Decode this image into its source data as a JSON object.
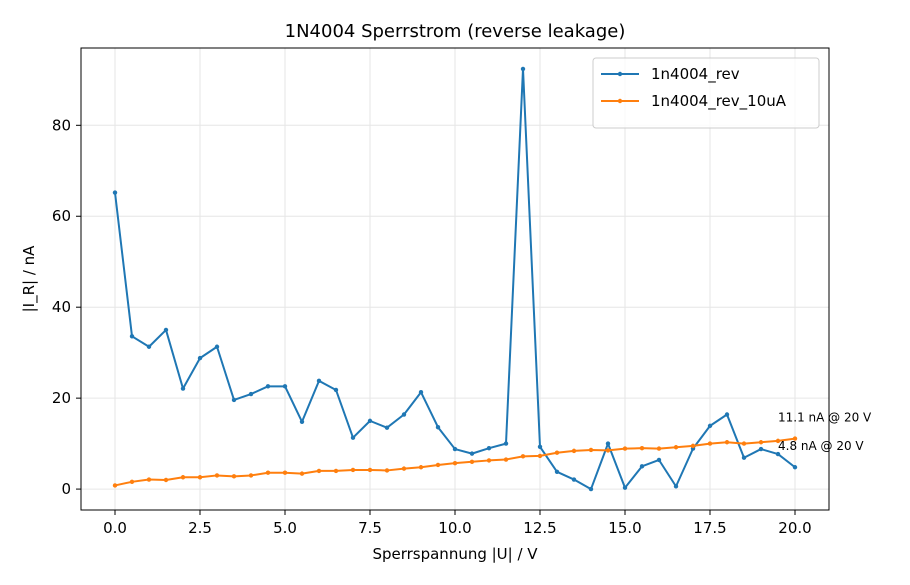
{
  "chart_data": {
    "type": "line",
    "title": "1N4004 Sperrstrom (reverse leakage)",
    "xlabel": "Sperrspannung |U| / V",
    "ylabel": "|I_R| / nA",
    "xlim": [
      -1.0,
      21.0
    ],
    "ylim": [
      -4.6,
      97.0
    ],
    "xticks": [
      0,
      2.5,
      5,
      7.5,
      10,
      12.5,
      15,
      17.5,
      20
    ],
    "xtick_labels": [
      "0.0",
      "2.5",
      "5.0",
      "7.5",
      "10.0",
      "12.5",
      "15.0",
      "17.5",
      "20.0"
    ],
    "yticks": [
      0,
      20,
      40,
      60,
      80
    ],
    "ytick_labels": [
      "0",
      "20",
      "40",
      "60",
      "80"
    ],
    "grid": true,
    "legend_position": "top-right",
    "x": [
      0,
      0.5,
      1,
      1.5,
      2,
      2.5,
      3,
      3.5,
      4,
      4.5,
      5,
      5.5,
      6,
      6.5,
      7,
      7.5,
      8,
      8.5,
      9,
      9.5,
      10,
      10.5,
      11,
      11.5,
      12,
      12.5,
      13,
      13.5,
      14,
      14.5,
      15,
      15.5,
      16,
      16.5,
      17,
      17.5,
      18,
      18.5,
      19,
      19.5,
      20
    ],
    "series": [
      {
        "name": "1n4004_rev",
        "color": "#1f77b4",
        "values": [
          65.2,
          33.6,
          31.3,
          35.0,
          22.1,
          28.8,
          31.3,
          19.6,
          20.9,
          22.6,
          22.6,
          14.8,
          23.8,
          21.8,
          11.3,
          15.0,
          13.5,
          16.4,
          21.3,
          13.6,
          8.8,
          7.8,
          9.0,
          10.0,
          92.4,
          9.3,
          3.8,
          2.1,
          0.0,
          10.0,
          0.3,
          5.0,
          6.4,
          0.6,
          8.9,
          13.9,
          16.4,
          6.9,
          8.8,
          7.7,
          4.8
        ]
      },
      {
        "name": "1n4004_rev_10uA",
        "color": "#ff7f0e",
        "values": [
          0.8,
          1.6,
          2.1,
          2.0,
          2.6,
          2.6,
          3.0,
          2.8,
          3.0,
          3.6,
          3.6,
          3.4,
          4.0,
          4.0,
          4.2,
          4.2,
          4.1,
          4.5,
          4.8,
          5.3,
          5.7,
          6.0,
          6.3,
          6.5,
          7.2,
          7.3,
          8.0,
          8.4,
          8.6,
          8.5,
          8.9,
          9.0,
          8.9,
          9.2,
          9.5,
          10.0,
          10.3,
          10.0,
          10.3,
          10.6,
          11.1
        ]
      }
    ],
    "annotations": [
      {
        "text": "11.1 nA @ 20 V",
        "x": 19.5,
        "y": 14.9
      },
      {
        "text": "4.8 nA @ 20 V",
        "x": 19.5,
        "y": 8.6
      }
    ]
  }
}
